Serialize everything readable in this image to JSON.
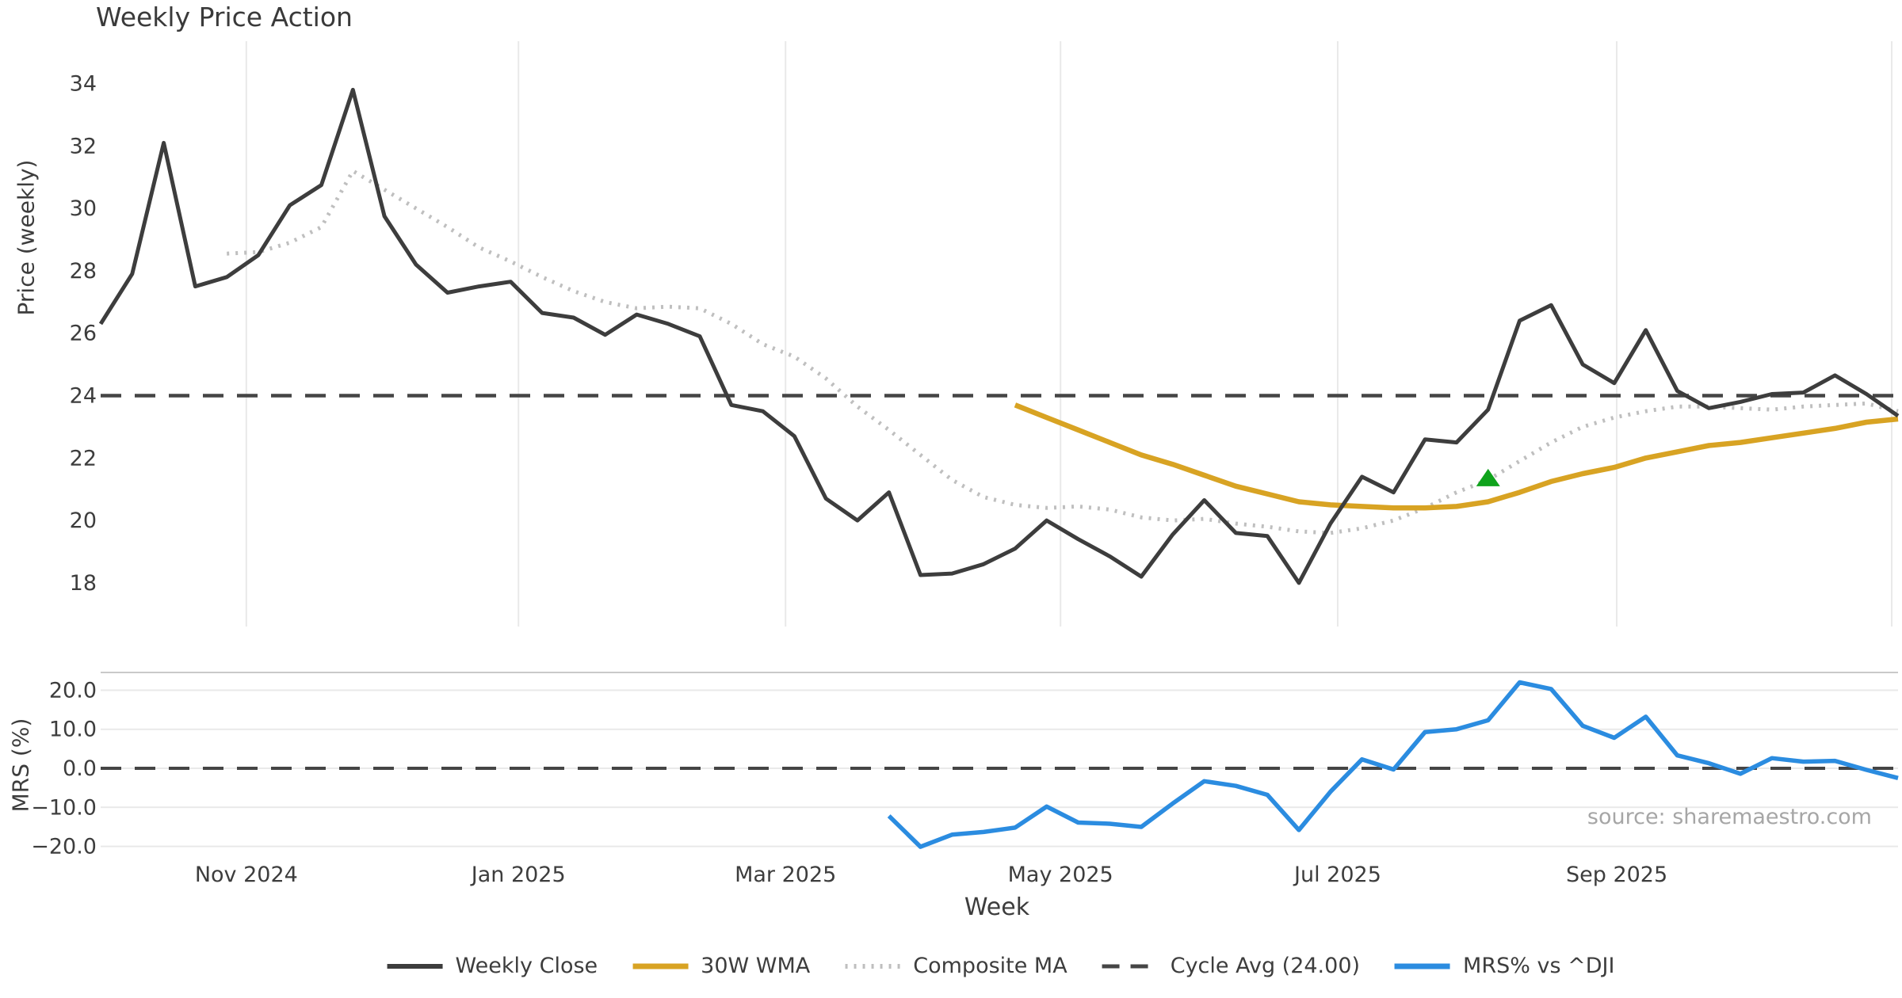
{
  "title": "Weekly Price Action",
  "xlabel": "Week",
  "source": "source: sharemaestro.com",
  "price_panel": {
    "ylabel": "Price (weekly)",
    "yticks": [
      34,
      32,
      30,
      28,
      26,
      24,
      22,
      20,
      18
    ],
    "cycle_avg_value": 24.0
  },
  "mrs_panel": {
    "ylabel": "MRS (%)",
    "yticks": [
      20.0,
      10.0,
      0.0,
      -10.0,
      -20.0
    ],
    "zero_line_value": 0.0
  },
  "legend": {
    "items": [
      {
        "label": "Weekly Close",
        "style": "solid-dark"
      },
      {
        "label": "30W WMA",
        "style": "solid-gold"
      },
      {
        "label": "Composite MA",
        "style": "dotted-gray"
      },
      {
        "label": "Cycle Avg (24.00)",
        "style": "dashed-dark"
      },
      {
        "label": "MRS% vs ^DJI",
        "style": "solid-blue"
      }
    ]
  },
  "colors": {
    "weekly_close": "#3d3d3d",
    "wma_30": "#d8a323",
    "composite_ma": "#bfbfbf",
    "cycle_avg": "#454545",
    "mrs": "#2b8ce0",
    "signal_marker": "#0fa31c",
    "gridline": "#e9e9e9",
    "panel_spine": "#c9c9c9",
    "tick_text": "#3d3d3d"
  },
  "chart_data": [
    {
      "type": "line",
      "panel": "price",
      "title": "Weekly Price Action",
      "xlabel": "Week",
      "ylabel": "Price (weekly)",
      "ylim": [
        17,
        35.3
      ],
      "x_unit": "week_index",
      "x": [
        0,
        1,
        2,
        3,
        4,
        5,
        6,
        7,
        8,
        9,
        10,
        11,
        12,
        13,
        14,
        15,
        16,
        17,
        18,
        19,
        20,
        21,
        22,
        23,
        24,
        25,
        26,
        27,
        28,
        29,
        30,
        31,
        32,
        33,
        34,
        35,
        36,
        37,
        38,
        39,
        40,
        41,
        42,
        43,
        44,
        45,
        46,
        47,
        48,
        49,
        50,
        51,
        52,
        53,
        54,
        55,
        56,
        57
      ],
      "x_ticks": [
        {
          "label": "Nov 2024",
          "week": 4.62
        },
        {
          "label": "Jan 2025",
          "week": 13.25
        },
        {
          "label": "Mar 2025",
          "week": 21.72
        },
        {
          "label": "May 2025",
          "week": 30.44
        },
        {
          "label": "Jul 2025",
          "week": 39.23
        },
        {
          "label": "Sep 2025",
          "week": 48.08
        },
        {
          "label": "",
          "week": 56.8
        }
      ],
      "series": [
        {
          "name": "Weekly Close",
          "values": [
            26.3,
            27.9,
            32.1,
            27.5,
            27.8,
            28.5,
            30.1,
            30.75,
            33.8,
            29.75,
            28.2,
            27.3,
            27.5,
            27.65,
            26.65,
            26.5,
            25.95,
            26.6,
            26.3,
            25.9,
            23.7,
            23.5,
            22.7,
            20.7,
            20.0,
            20.9,
            18.25,
            18.3,
            18.6,
            19.1,
            20.0,
            19.4,
            18.85,
            18.2,
            19.55,
            20.65,
            19.6,
            19.5,
            18.0,
            19.9,
            21.4,
            20.9,
            22.6,
            22.5,
            23.55,
            26.4,
            26.9,
            25.0,
            24.4,
            26.1,
            24.15,
            23.6,
            23.8,
            24.05,
            24.1,
            24.65,
            24.05,
            23.35
          ]
        },
        {
          "name": "30W WMA",
          "values": [
            null,
            null,
            null,
            null,
            null,
            null,
            null,
            null,
            null,
            null,
            null,
            null,
            null,
            null,
            null,
            null,
            null,
            null,
            null,
            null,
            null,
            null,
            null,
            null,
            null,
            null,
            null,
            null,
            null,
            23.7,
            23.3,
            22.9,
            22.5,
            22.1,
            21.8,
            21.45,
            21.1,
            20.85,
            20.6,
            20.5,
            20.45,
            20.4,
            20.4,
            20.45,
            20.6,
            20.9,
            21.25,
            21.5,
            21.7,
            22.0,
            22.2,
            22.4,
            22.5,
            22.65,
            22.8,
            22.95,
            23.15,
            23.25
          ]
        },
        {
          "name": "Composite MA",
          "values": [
            null,
            null,
            null,
            null,
            28.55,
            28.6,
            28.9,
            29.4,
            31.2,
            30.6,
            30.0,
            29.4,
            28.75,
            28.3,
            27.8,
            27.35,
            27.0,
            26.8,
            26.85,
            26.8,
            26.3,
            25.65,
            25.25,
            24.55,
            23.65,
            22.9,
            22.1,
            21.3,
            20.75,
            20.5,
            20.4,
            20.45,
            20.35,
            20.1,
            20.0,
            20.05,
            19.9,
            19.8,
            19.65,
            19.6,
            19.75,
            20.0,
            20.4,
            20.9,
            21.3,
            21.9,
            22.5,
            23.0,
            23.3,
            23.5,
            23.65,
            23.65,
            23.6,
            23.55,
            23.65,
            23.7,
            23.75,
            23.5
          ]
        },
        {
          "name": "Cycle Avg (24.00)",
          "style": "horizontal-dashed",
          "value": 24.0
        }
      ],
      "annotations": [
        {
          "type": "triangle-up-marker",
          "name": "buy-signal",
          "week": 44,
          "value": 21.35,
          "color": "#0fa31c"
        }
      ],
      "grid": "vertical-month-lines",
      "legend_position": "bottom-center-figure"
    },
    {
      "type": "line",
      "panel": "mrs",
      "ylabel": "MRS (%)",
      "ylim": [
        -23.5,
        24.5
      ],
      "x_unit": "week_index",
      "series": [
        {
          "name": "MRS% vs ^DJI",
          "values": [
            null,
            null,
            null,
            null,
            null,
            null,
            null,
            null,
            null,
            null,
            null,
            null,
            null,
            null,
            null,
            null,
            null,
            null,
            null,
            null,
            null,
            null,
            null,
            null,
            null,
            -12.2,
            -20.1,
            -17.0,
            -16.3,
            -15.2,
            -9.8,
            -13.9,
            -14.2,
            -15.0,
            -9.0,
            -3.3,
            -4.5,
            -6.8,
            -15.8,
            -6.0,
            2.3,
            -0.3,
            9.3,
            10.0,
            12.3,
            22.0,
            20.3,
            10.9,
            7.8,
            13.2,
            3.3,
            1.3,
            -1.4,
            2.6,
            1.7,
            1.9,
            -0.4,
            -2.5
          ]
        },
        {
          "name": "Zero line",
          "style": "horizontal-dashed",
          "value": 0.0
        }
      ],
      "grid": "horizontal-lines"
    }
  ]
}
